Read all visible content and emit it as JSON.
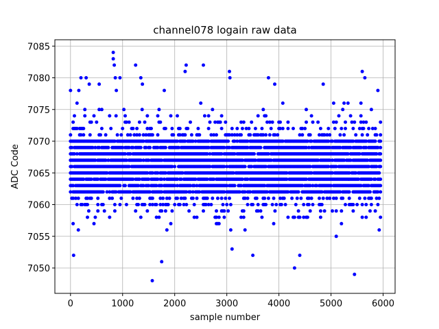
{
  "chart_data": {
    "type": "scatter",
    "title": "channel078 logain raw data",
    "xlabel": "sample number",
    "ylabel": "ADC Code",
    "xlim": [
      -300,
      6230
    ],
    "ylim": [
      7046,
      7086
    ],
    "xticks": [
      0,
      1000,
      2000,
      3000,
      4000,
      5000,
      6000
    ],
    "yticks": [
      7050,
      7055,
      7060,
      7065,
      7070,
      7075,
      7080,
      7085
    ],
    "grid": true,
    "marker_color": "#0000ff",
    "x_range": [
      0,
      5950
    ],
    "sample_step": 25,
    "typical_range": [
      7055,
      7076
    ],
    "center_value": 7066,
    "outliers": [
      {
        "x": 0,
        "y": 7078
      },
      {
        "x": 60,
        "y": 7052
      },
      {
        "x": 160,
        "y": 7078
      },
      {
        "x": 200,
        "y": 7080
      },
      {
        "x": 300,
        "y": 7080
      },
      {
        "x": 360,
        "y": 7079
      },
      {
        "x": 550,
        "y": 7079
      },
      {
        "x": 820,
        "y": 7084
      },
      {
        "x": 820,
        "y": 7083
      },
      {
        "x": 840,
        "y": 7082
      },
      {
        "x": 860,
        "y": 7080
      },
      {
        "x": 880,
        "y": 7078
      },
      {
        "x": 950,
        "y": 7080
      },
      {
        "x": 1250,
        "y": 7082
      },
      {
        "x": 1350,
        "y": 7080
      },
      {
        "x": 1380,
        "y": 7079
      },
      {
        "x": 1570,
        "y": 7048
      },
      {
        "x": 1750,
        "y": 7051
      },
      {
        "x": 1800,
        "y": 7078
      },
      {
        "x": 2200,
        "y": 7081
      },
      {
        "x": 2220,
        "y": 7082
      },
      {
        "x": 2550,
        "y": 7082
      },
      {
        "x": 3050,
        "y": 7081
      },
      {
        "x": 3060,
        "y": 7080
      },
      {
        "x": 3100,
        "y": 7053
      },
      {
        "x": 3500,
        "y": 7052
      },
      {
        "x": 3800,
        "y": 7080
      },
      {
        "x": 3920,
        "y": 7079
      },
      {
        "x": 4300,
        "y": 7050
      },
      {
        "x": 4400,
        "y": 7052
      },
      {
        "x": 4850,
        "y": 7079
      },
      {
        "x": 5100,
        "y": 7055
      },
      {
        "x": 5450,
        "y": 7049
      },
      {
        "x": 5600,
        "y": 7081
      },
      {
        "x": 5650,
        "y": 7080
      },
      {
        "x": 5900,
        "y": 7078
      }
    ]
  }
}
